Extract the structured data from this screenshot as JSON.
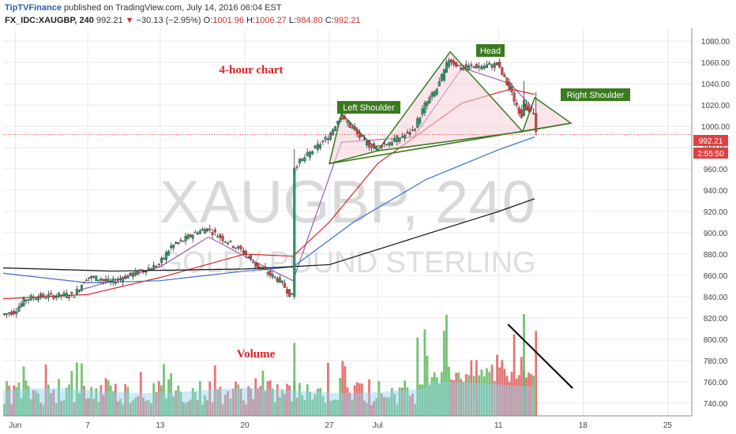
{
  "header": {
    "brand": "TipTVFinance",
    "published": "published on TradingView.com, July 14, 2016 06:04 EST",
    "symbol": "FX_IDC:XAUGBP, 240",
    "last": "992.21",
    "down_arrow": "▼",
    "change": "−30.13 (−2.95%)",
    "o_label": "O:",
    "o_value": "1001.96",
    "h_label": "H:",
    "h_value": "1006.27",
    "l_label": "L:",
    "l_value": "984.80",
    "c_label": "C:",
    "c_value": "992.21"
  },
  "watermark": {
    "line1": "XAUGBP, 240",
    "line2": "GOLD / POUND STERLING"
  },
  "annotations": {
    "chart_title": "4-hour chart",
    "volume": "Volume",
    "left_shoulder": "Left Shoulder",
    "head": "Head",
    "right_shoulder": "Right Shoulder"
  },
  "price_tags": {
    "last_price": "992.21",
    "countdown": "2:55:50"
  },
  "colors": {
    "up": "#26a269",
    "down": "#e0403a",
    "vol_up": "#5cb85c",
    "vol_down": "#e35d5d",
    "ma_fast": "#9b59b6",
    "ma_mid": "#d62728",
    "ma_slow": "#3d6ec9",
    "ma_long": "#111111",
    "pattern": "#3c7a20",
    "pattern_fill": "#f4cfd8",
    "annotation": "#e02020",
    "grid": "#e8e8e8",
    "tag": "#e04040"
  },
  "chart_data": {
    "type": "candlestick",
    "symbol": "XAUGBP",
    "timeframe": "240",
    "x_tick_labels": [
      "Jun",
      "7",
      "13",
      "20",
      "27",
      "Jul",
      "11",
      "18",
      "25"
    ],
    "y_tick_labels": [
      "740.00",
      "760.00",
      "780.00",
      "800.00",
      "820.00",
      "840.00",
      "860.00",
      "880.00",
      "900.00",
      "920.00",
      "940.00",
      "960.00",
      "980.00",
      "1000.00",
      "1020.00",
      "1040.00",
      "1060.00",
      "1080.00"
    ],
    "ylim": [
      728,
      1092
    ],
    "grid": true,
    "price_path": [
      {
        "date": "2016-05-31",
        "price": 823
      },
      {
        "date": "2016-06-01",
        "price": 826
      },
      {
        "date": "2016-06-02",
        "price": 838
      },
      {
        "date": "2016-06-03",
        "price": 840
      },
      {
        "date": "2016-06-06",
        "price": 842
      },
      {
        "date": "2016-06-07",
        "price": 858
      },
      {
        "date": "2016-06-08",
        "price": 857
      },
      {
        "date": "2016-06-09",
        "price": 853
      },
      {
        "date": "2016-06-10",
        "price": 858
      },
      {
        "date": "2016-06-13",
        "price": 870
      },
      {
        "date": "2016-06-14",
        "price": 887
      },
      {
        "date": "2016-06-15",
        "price": 893
      },
      {
        "date": "2016-06-16",
        "price": 900
      },
      {
        "date": "2016-06-17",
        "price": 904
      },
      {
        "date": "2016-06-20",
        "price": 882
      },
      {
        "date": "2016-06-21",
        "price": 870
      },
      {
        "date": "2016-06-22",
        "price": 862
      },
      {
        "date": "2016-06-23",
        "price": 855
      },
      {
        "date": "2016-06-24",
        "price": 840
      },
      {
        "date": "2016-06-24",
        "price": 960
      },
      {
        "date": "2016-06-27",
        "price": 990
      },
      {
        "date": "2016-06-28",
        "price": 1010
      },
      {
        "date": "2016-06-29",
        "price": 998
      },
      {
        "date": "2016-06-30",
        "price": 985
      },
      {
        "date": "2016-07-01",
        "price": 980
      },
      {
        "date": "2016-07-04",
        "price": 995
      },
      {
        "date": "2016-07-05",
        "price": 1020
      },
      {
        "date": "2016-07-06",
        "price": 1035
      },
      {
        "date": "2016-07-07",
        "price": 1063
      },
      {
        "date": "2016-07-08",
        "price": 1055
      },
      {
        "date": "2016-07-11",
        "price": 1058
      },
      {
        "date": "2016-07-12",
        "price": 1035
      },
      {
        "date": "2016-07-13",
        "price": 1010
      },
      {
        "date": "2016-07-13",
        "price": 1022
      },
      {
        "date": "2016-07-14",
        "price": 1012
      },
      {
        "date": "2016-07-14",
        "price": 992.21
      }
    ],
    "moving_averages": [
      {
        "color": "#9b59b6",
        "points": [
          [
            "2016-06-06",
            845
          ],
          [
            "2016-06-13",
            868
          ],
          [
            "2016-06-17",
            896
          ],
          [
            "2016-06-22",
            866
          ],
          [
            "2016-06-24",
            855
          ],
          [
            "2016-06-28",
            985
          ],
          [
            "2016-07-04",
            990
          ],
          [
            "2016-07-08",
            1055
          ],
          [
            "2016-07-12",
            1040
          ],
          [
            "2016-07-14",
            1015
          ]
        ]
      },
      {
        "color": "#d62728",
        "points": [
          [
            "2016-05-31",
            838
          ],
          [
            "2016-06-07",
            842
          ],
          [
            "2016-06-13",
            858
          ],
          [
            "2016-06-20",
            880
          ],
          [
            "2016-06-24",
            878
          ],
          [
            "2016-06-27",
            910
          ],
          [
            "2016-07-01",
            965
          ],
          [
            "2016-07-08",
            1022
          ],
          [
            "2016-07-12",
            1035
          ],
          [
            "2016-07-14",
            1030
          ]
        ]
      },
      {
        "color": "#3d6ec9",
        "points": [
          [
            "2016-05-31",
            862
          ],
          [
            "2016-06-07",
            853
          ],
          [
            "2016-06-13",
            855
          ],
          [
            "2016-06-20",
            864
          ],
          [
            "2016-06-24",
            868
          ],
          [
            "2016-06-29",
            910
          ],
          [
            "2016-07-05",
            950
          ],
          [
            "2016-07-11",
            978
          ],
          [
            "2016-07-14",
            990
          ]
        ]
      },
      {
        "color": "#111111",
        "points": [
          [
            "2016-05-31",
            867
          ],
          [
            "2016-06-09",
            864
          ],
          [
            "2016-06-20",
            866
          ],
          [
            "2016-06-27",
            870
          ],
          [
            "2016-07-04",
            895
          ],
          [
            "2016-07-11",
            920
          ],
          [
            "2016-07-14",
            932
          ]
        ]
      }
    ],
    "pattern": {
      "neckline": [
        [
          "2016-06-27",
          965
        ],
        [
          "2016-07-17",
          1003
        ]
      ],
      "left_shoulder": [
        [
          "2016-06-27",
          965
        ],
        [
          "2016-06-28",
          1012
        ],
        [
          "2016-07-01",
          977
        ]
      ],
      "head": [
        [
          "2016-07-01",
          977
        ],
        [
          "2016-07-07",
          1070
        ],
        [
          "2016-07-13",
          995
        ]
      ],
      "right_shoulder": [
        [
          "2016-07-13",
          995
        ],
        [
          "2016-07-14",
          1027
        ],
        [
          "2016-07-17",
          1003
        ]
      ]
    },
    "volume_trendline": true
  }
}
